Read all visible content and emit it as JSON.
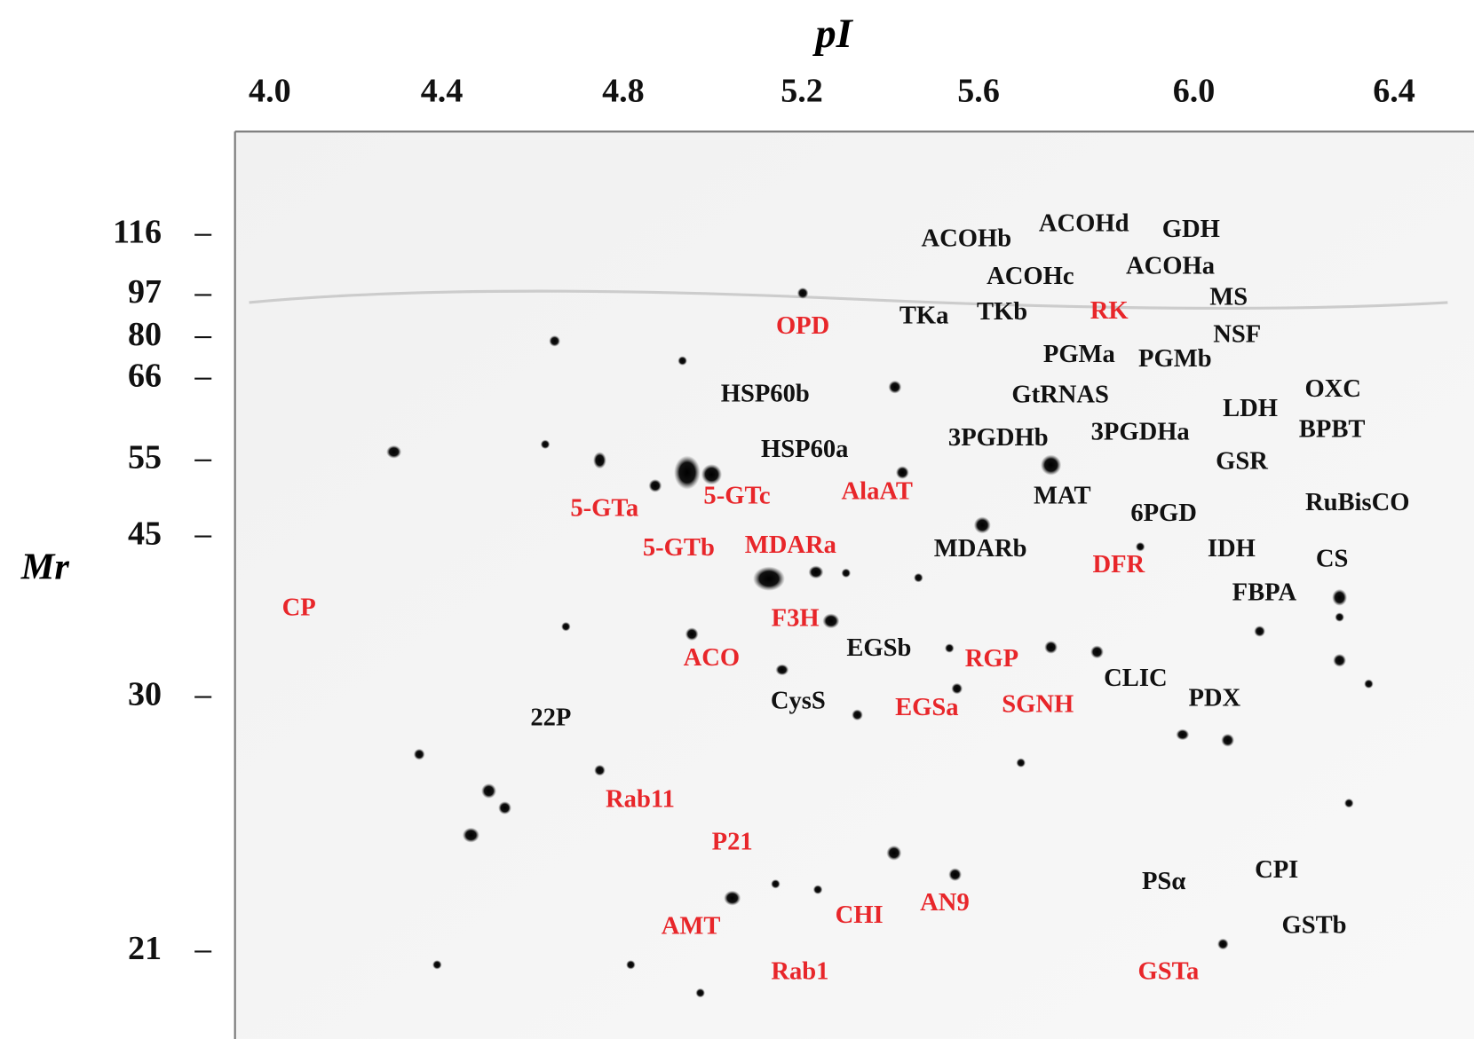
{
  "x_axis": {
    "title": "pI",
    "ticks": [
      "4.0",
      "4.4",
      "4.8",
      "5.2",
      "5.6",
      "6.0",
      "6.4"
    ]
  },
  "y_axis": {
    "title": "Mr",
    "ticks": [
      "116",
      "97",
      "80",
      "66",
      "55",
      "45",
      "30",
      "21"
    ]
  },
  "spot_labels": [
    {
      "text": "ACOHb",
      "color": "#111111"
    },
    {
      "text": "ACOHd",
      "color": "#111111"
    },
    {
      "text": "GDH",
      "color": "#111111"
    },
    {
      "text": "ACOHc",
      "color": "#111111"
    },
    {
      "text": "ACOHa",
      "color": "#111111"
    },
    {
      "text": "MS",
      "color": "#111111"
    },
    {
      "text": "TKa",
      "color": "#111111"
    },
    {
      "text": "TKb",
      "color": "#111111"
    },
    {
      "text": "NSF",
      "color": "#111111"
    },
    {
      "text": "PGMa",
      "color": "#111111"
    },
    {
      "text": "PGMb",
      "color": "#111111"
    },
    {
      "text": "OXC",
      "color": "#111111"
    },
    {
      "text": "GtRNAS",
      "color": "#111111"
    },
    {
      "text": "HSP60b",
      "color": "#111111"
    },
    {
      "text": "LDH",
      "color": "#111111"
    },
    {
      "text": "3PGDHa",
      "color": "#111111"
    },
    {
      "text": "3PGDHb",
      "color": "#111111"
    },
    {
      "text": "BPBT",
      "color": "#111111"
    },
    {
      "text": "HSP60a",
      "color": "#111111"
    },
    {
      "text": "GSR",
      "color": "#111111"
    },
    {
      "text": "MAT",
      "color": "#111111"
    },
    {
      "text": "RuBisCO",
      "color": "#111111"
    },
    {
      "text": "6PGD",
      "color": "#111111"
    },
    {
      "text": "MDARb",
      "color": "#111111"
    },
    {
      "text": "IDH",
      "color": "#111111"
    },
    {
      "text": "CS",
      "color": "#111111"
    },
    {
      "text": "FBPA",
      "color": "#111111"
    },
    {
      "text": "EGSb",
      "color": "#111111"
    },
    {
      "text": "CLIC",
      "color": "#111111"
    },
    {
      "text": "PDX",
      "color": "#111111"
    },
    {
      "text": "CysS",
      "color": "#111111"
    },
    {
      "text": "22P",
      "color": "#111111"
    },
    {
      "text": "PSα",
      "color": "#111111"
    },
    {
      "text": "CPI",
      "color": "#111111"
    },
    {
      "text": "GSTb",
      "color": "#111111"
    },
    {
      "text": "OPD",
      "color": "#e8262a"
    },
    {
      "text": "RK",
      "color": "#e8262a"
    },
    {
      "text": "AlaAT",
      "color": "#e8262a"
    },
    {
      "text": "5-GTa",
      "color": "#e8262a"
    },
    {
      "text": "5-GTc",
      "color": "#e8262a"
    },
    {
      "text": "5-GTb",
      "color": "#e8262a"
    },
    {
      "text": "MDARa",
      "color": "#e8262a"
    },
    {
      "text": "DFR",
      "color": "#e8262a"
    },
    {
      "text": "CP",
      "color": "#e8262a"
    },
    {
      "text": "F3H",
      "color": "#e8262a"
    },
    {
      "text": "ACO",
      "color": "#e8262a"
    },
    {
      "text": "RGP",
      "color": "#e8262a"
    },
    {
      "text": "EGSa",
      "color": "#e8262a"
    },
    {
      "text": "SGNH",
      "color": "#e8262a"
    },
    {
      "text": "Rab11",
      "color": "#e8262a"
    },
    {
      "text": "P21",
      "color": "#e8262a"
    },
    {
      "text": "AN9",
      "color": "#e8262a"
    },
    {
      "text": "CHI",
      "color": "#e8262a"
    },
    {
      "text": "AMT",
      "color": "#e8262a"
    },
    {
      "text": "Rab1",
      "color": "#e8262a"
    },
    {
      "text": "GSTa",
      "color": "#e8262a"
    }
  ]
}
